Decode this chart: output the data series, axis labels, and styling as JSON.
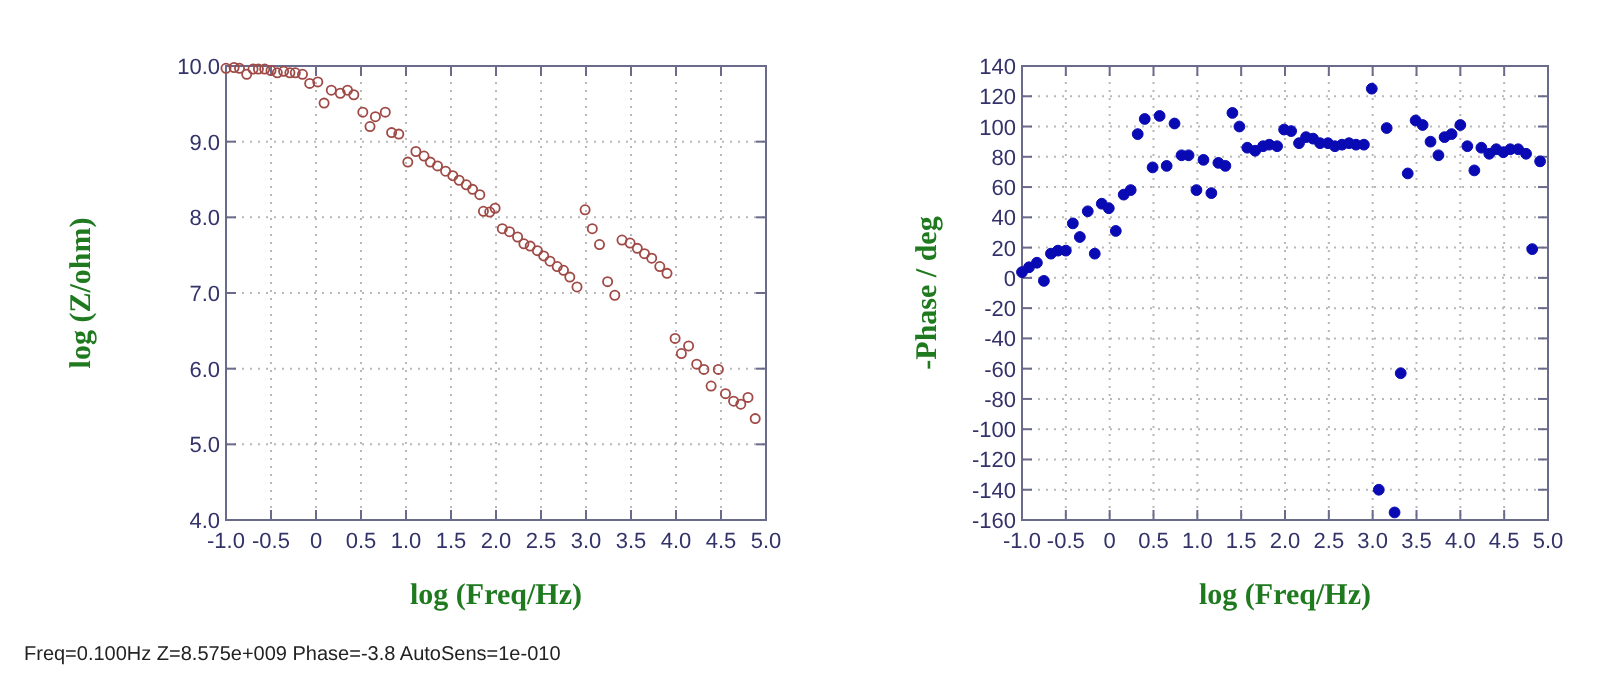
{
  "chart_data": [
    {
      "type": "scatter",
      "xlabel": "log (Freq/Hz)",
      "ylabel": "log (Z/ohm)",
      "marker": "circle",
      "grid": true,
      "xlim": [
        -1,
        5
      ],
      "ylim": [
        4,
        10
      ],
      "xticks": [
        {
          "value": -1,
          "label": "-1.0"
        },
        -0.5,
        0,
        0.5,
        {
          "value": 1,
          "label": "1.0"
        },
        1.5,
        {
          "value": 2,
          "label": "2.0"
        },
        2.5,
        {
          "value": 3,
          "label": "3.0"
        },
        3.5,
        {
          "value": 4,
          "label": "4.0"
        },
        4.5,
        {
          "value": 5,
          "label": "5.0"
        }
      ],
      "yticks": [
        {
          "value": 4,
          "label": "4.0"
        },
        {
          "value": 5,
          "label": "5.0"
        },
        {
          "value": 6,
          "label": "6.0"
        },
        {
          "value": 7,
          "label": "7.0"
        },
        {
          "value": 8,
          "label": "8.0"
        },
        {
          "value": 9,
          "label": "9.0"
        },
        {
          "value": 10,
          "label": "10.0"
        }
      ],
      "annotations": [
        "Freq=0.100Hz  Z=8.575e+009  Phase=-3.8  AutoSens=1e-010"
      ],
      "series": [
        {
          "color": "#a04a46",
          "x": [
            -1.0,
            -0.91,
            -0.85,
            -0.77,
            -0.7,
            -0.64,
            -0.57,
            -0.5,
            -0.43,
            -0.36,
            -0.29,
            -0.23,
            -0.15,
            -0.07,
            0.02,
            0.09,
            0.17,
            0.27,
            0.35,
            0.42,
            0.52,
            0.6,
            0.66,
            0.77,
            0.84,
            0.92,
            1.02,
            1.11,
            1.2,
            1.27,
            1.35,
            1.44,
            1.52,
            1.59,
            1.67,
            1.74,
            1.82,
            1.86,
            1.93,
            1.99,
            2.07,
            2.15,
            2.24,
            2.31,
            2.38,
            2.46,
            2.53,
            2.6,
            2.68,
            2.75,
            2.82,
            2.9,
            2.99,
            3.07,
            3.15,
            3.24,
            3.32,
            3.4,
            3.49,
            3.57,
            3.65,
            3.73,
            3.82,
            3.9,
            3.99,
            4.06,
            4.14,
            4.23,
            4.31,
            4.39,
            4.47,
            4.55,
            4.64,
            4.72,
            4.8,
            4.88
          ],
          "values": [
            9.97,
            9.98,
            9.97,
            9.89,
            9.96,
            9.96,
            9.96,
            9.94,
            9.91,
            9.93,
            9.91,
            9.91,
            9.89,
            9.77,
            9.79,
            9.51,
            9.68,
            9.64,
            9.68,
            9.62,
            9.39,
            9.2,
            9.33,
            9.39,
            9.12,
            9.1,
            8.73,
            8.87,
            8.81,
            8.73,
            8.68,
            8.61,
            8.55,
            8.49,
            8.43,
            8.37,
            8.3,
            8.08,
            8.07,
            8.12,
            7.85,
            7.81,
            7.74,
            7.65,
            7.62,
            7.56,
            7.49,
            7.42,
            7.35,
            7.3,
            7.21,
            7.08,
            8.1,
            7.85,
            7.64,
            7.15,
            6.97,
            7.7,
            7.66,
            7.59,
            7.52,
            7.46,
            7.35,
            7.26,
            6.4,
            6.2,
            6.3,
            6.06,
            5.99,
            5.77,
            5.99,
            5.67,
            5.57,
            5.53,
            5.62,
            5.34
          ]
        }
      ]
    },
    {
      "type": "scatter",
      "xlabel": "log (Freq/Hz)",
      "ylabel": "-Phase / deg",
      "marker": "circle",
      "grid": true,
      "xlim": [
        -1,
        5
      ],
      "ylim": [
        -160,
        140
      ],
      "xticks": [
        {
          "value": -1,
          "label": "-1.0"
        },
        -0.5,
        0,
        0.5,
        {
          "value": 1,
          "label": "1.0"
        },
        1.5,
        {
          "value": 2,
          "label": "2.0"
        },
        2.5,
        {
          "value": 3,
          "label": "3.0"
        },
        3.5,
        {
          "value": 4,
          "label": "4.0"
        },
        4.5,
        {
          "value": 5,
          "label": "5.0"
        }
      ],
      "yticks": [
        -160,
        -140,
        -120,
        -100,
        -80,
        -60,
        -40,
        -20,
        0,
        20,
        40,
        60,
        80,
        100,
        120,
        140
      ],
      "series": [
        {
          "color": "#0a0ab4",
          "x": [
            -1.0,
            -0.92,
            -0.83,
            -0.75,
            -0.67,
            -0.59,
            -0.5,
            -0.42,
            -0.34,
            -0.25,
            -0.17,
            -0.09,
            -0.01,
            0.07,
            0.16,
            0.24,
            0.32,
            0.4,
            0.49,
            0.57,
            0.65,
            0.74,
            0.82,
            0.9,
            0.99,
            1.07,
            1.16,
            1.24,
            1.32,
            1.4,
            1.48,
            1.57,
            1.66,
            1.75,
            1.82,
            1.91,
            1.99,
            2.07,
            2.16,
            2.24,
            2.32,
            2.4,
            2.49,
            2.57,
            2.65,
            2.73,
            2.81,
            2.9,
            2.99,
            3.07,
            3.16,
            3.25,
            3.32,
            3.4,
            3.49,
            3.57,
            3.66,
            3.75,
            3.82,
            3.9,
            4.0,
            4.08,
            4.16,
            4.24,
            4.33,
            4.41,
            4.49,
            4.57,
            4.66,
            4.75,
            4.82,
            4.91
          ],
          "values": [
            3.8,
            7,
            10,
            -2,
            16,
            18,
            18,
            36,
            27,
            44,
            16,
            49,
            46,
            31,
            55,
            58,
            95,
            105,
            73,
            107,
            74,
            102,
            81,
            81,
            58,
            78,
            56,
            76,
            74,
            109,
            100,
            86,
            84,
            87,
            88,
            87,
            98,
            97,
            89,
            93,
            92,
            89,
            89,
            87,
            88,
            89,
            88,
            88,
            125,
            -140,
            99,
            -155,
            -63,
            69,
            104,
            101,
            90,
            81,
            93,
            95,
            101,
            87,
            71,
            86,
            82,
            85,
            83,
            85,
            85,
            82,
            19,
            77
          ]
        }
      ]
    }
  ]
}
